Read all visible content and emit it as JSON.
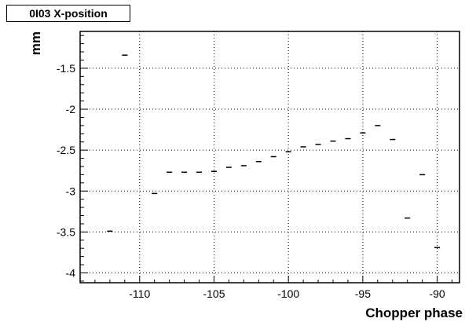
{
  "chart_data": {
    "type": "scatter",
    "title": "0I03 X-position",
    "xlabel": "Chopper phase",
    "ylabel": "mm",
    "xlim": [
      -114,
      -88.5
    ],
    "ylim": [
      -4.12,
      -1.05
    ],
    "xticks": [
      -110,
      -105,
      -100,
      -95,
      -90
    ],
    "yticks": [
      -1.5,
      -2,
      -2.5,
      -3,
      -3.5,
      -4
    ],
    "xtick_labels": [
      "-110",
      "-105",
      "-100",
      "-95",
      "-90"
    ],
    "ytick_labels": [
      "-1.5",
      "-2",
      "-2.5",
      "-3",
      "-3.5",
      "-4"
    ],
    "grid": true,
    "points": [
      {
        "x": -112,
        "y": -3.49
      },
      {
        "x": -111,
        "y": -1.34
      },
      {
        "x": -109,
        "y": -3.03
      },
      {
        "x": -108,
        "y": -2.77
      },
      {
        "x": -107,
        "y": -2.77
      },
      {
        "x": -106,
        "y": -2.77
      },
      {
        "x": -105,
        "y": -2.76
      },
      {
        "x": -104,
        "y": -2.71
      },
      {
        "x": -103,
        "y": -2.69
      },
      {
        "x": -102,
        "y": -2.64
      },
      {
        "x": -101,
        "y": -2.58
      },
      {
        "x": -100,
        "y": -2.52
      },
      {
        "x": -99,
        "y": -2.46
      },
      {
        "x": -98,
        "y": -2.43
      },
      {
        "x": -97,
        "y": -2.39
      },
      {
        "x": -96,
        "y": -2.36
      },
      {
        "x": -95,
        "y": -2.29
      },
      {
        "x": -94,
        "y": -2.2
      },
      {
        "x": -93,
        "y": -2.37
      },
      {
        "x": -92,
        "y": -3.33
      },
      {
        "x": -91,
        "y": -2.8
      },
      {
        "x": -90,
        "y": -3.69
      }
    ]
  }
}
